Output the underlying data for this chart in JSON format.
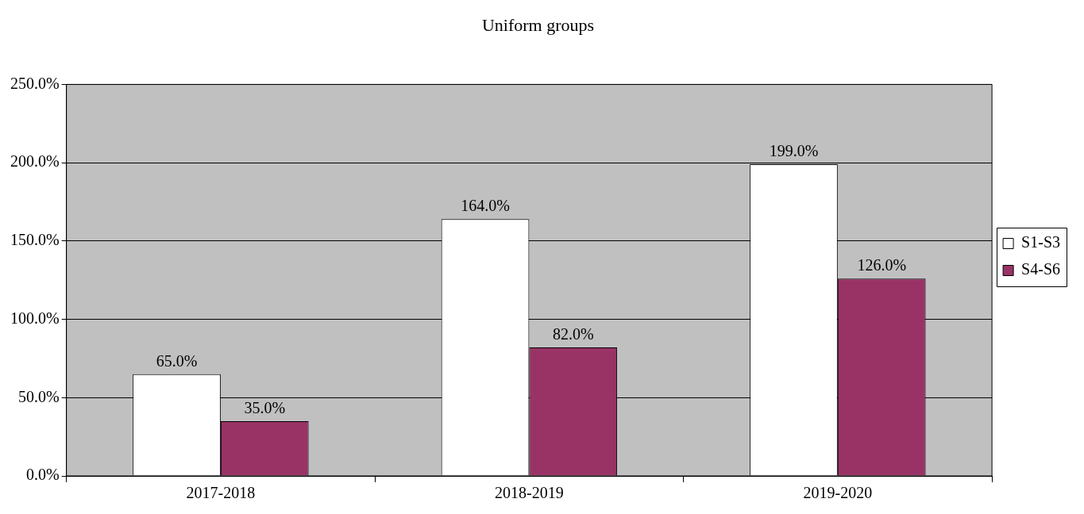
{
  "chart_data": {
    "type": "bar",
    "title": "Uniform groups",
    "categories": [
      "2017-2018",
      "2018-2019",
      "2019-2020"
    ],
    "series": [
      {
        "name": "S1-S3",
        "color": "#ffffff",
        "values": [
          65,
          164,
          199
        ],
        "value_labels": [
          "65.0%",
          "164.0%",
          "199.0%"
        ]
      },
      {
        "name": "S4-S6",
        "color": "#993366",
        "values": [
          35,
          82,
          126
        ],
        "value_labels": [
          "35.0%",
          "82.0%",
          "126.0%"
        ]
      }
    ],
    "ylim": [
      0,
      250
    ],
    "yticks": [
      {
        "value": 0,
        "label": "0.0%"
      },
      {
        "value": 50,
        "label": "50.0%"
      },
      {
        "value": 100,
        "label": "100.0%"
      },
      {
        "value": 150,
        "label": "150.0%"
      },
      {
        "value": 200,
        "label": "200.0%"
      },
      {
        "value": 250,
        "label": "250.0%"
      }
    ],
    "grid": "y",
    "legend": "right"
  }
}
